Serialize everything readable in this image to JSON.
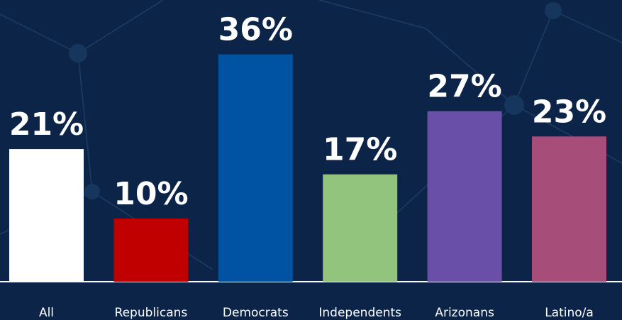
{
  "chart_data": {
    "type": "bar",
    "categories": [
      "All",
      "Republicans",
      "Democrats",
      "Independents",
      "Arizonans",
      "Latino/a"
    ],
    "values": [
      21,
      10,
      36,
      17,
      27,
      23
    ],
    "value_labels": [
      "21%",
      "10%",
      "36%",
      "17%",
      "27%",
      "23%"
    ],
    "colors": [
      "#ffffff",
      "#c00000",
      "#0052a3",
      "#93c47d",
      "#6a4fa8",
      "#a64d79"
    ]
  }
}
